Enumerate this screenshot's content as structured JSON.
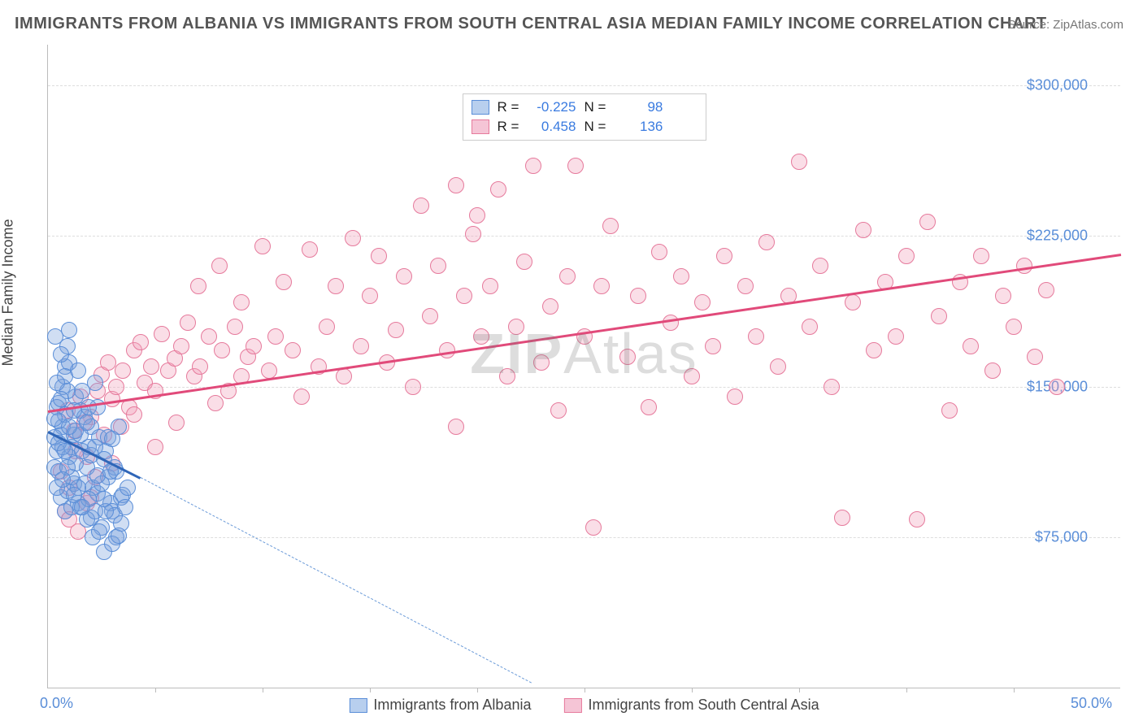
{
  "title": "IMMIGRANTS FROM ALBANIA VS IMMIGRANTS FROM SOUTH CENTRAL ASIA MEDIAN FAMILY INCOME CORRELATION CHART",
  "source_label": "Source: ZipAtlas.com",
  "y_axis_label": "Median Family Income",
  "watermark_prefix": "ZIP",
  "watermark_suffix": "Atlas",
  "chart": {
    "type": "scatter",
    "xlim": [
      0,
      50
    ],
    "ylim": [
      0,
      320000
    ],
    "y_ticks": [
      75000,
      150000,
      225000,
      300000
    ],
    "y_tick_labels": [
      "$75,000",
      "$150,000",
      "$225,000",
      "$300,000"
    ],
    "x_tick_positions": [
      5,
      10,
      15,
      20,
      25,
      30,
      35,
      40,
      45
    ],
    "x_start_label": "0.0%",
    "x_end_label": "50.0%",
    "background_color": "#ffffff",
    "grid_color": "#dddddd",
    "axis_color": "#bbbbbb",
    "tick_label_color": "#5a8ed8",
    "marker_radius": 10,
    "marker_stroke_width": 1.5,
    "series": [
      {
        "name": "Immigrants from Albania",
        "fill": "rgba(120,160,220,0.35)",
        "stroke": "#5a8ed8",
        "legend_fill": "#b8cfee",
        "legend_stroke": "#5a8ed8",
        "r": "-0.225",
        "n": "98",
        "trend": {
          "x1": 0,
          "y1": 128000,
          "x2": 4.3,
          "y2": 105000,
          "dash_x2": 22.5,
          "dash_y2": 3000,
          "color": "#2f66b8",
          "width": 3,
          "dash_color": "#6a9ad8"
        },
        "points": [
          [
            0.3,
            110000
          ],
          [
            0.4,
            118000
          ],
          [
            0.35,
            175000
          ],
          [
            0.5,
            142000
          ],
          [
            0.6,
            95000
          ],
          [
            0.7,
            130000
          ],
          [
            0.8,
            160000
          ],
          [
            0.5,
            108000
          ],
          [
            0.6,
            126000
          ],
          [
            0.9,
            98000
          ],
          [
            0.7,
            150000
          ],
          [
            0.4,
            140000
          ],
          [
            0.3,
            125000
          ],
          [
            0.8,
            136000
          ],
          [
            1.0,
            115000
          ],
          [
            1.1,
            120000
          ],
          [
            1.2,
            102000
          ],
          [
            1.3,
            145000
          ],
          [
            1.0,
            162000
          ],
          [
            0.9,
            170000
          ],
          [
            1.4,
            92000
          ],
          [
            1.5,
            138000
          ],
          [
            1.6,
            148000
          ],
          [
            1.2,
            126000
          ],
          [
            1.1,
            105000
          ],
          [
            0.8,
            88000
          ],
          [
            0.6,
            166000
          ],
          [
            1.7,
            135000
          ],
          [
            1.8,
            110000
          ],
          [
            1.9,
            120000
          ],
          [
            2.0,
            130000
          ],
          [
            2.1,
            100000
          ],
          [
            2.2,
            152000
          ],
          [
            1.5,
            90000
          ],
          [
            1.3,
            112000
          ],
          [
            2.3,
            97000
          ],
          [
            2.4,
            125000
          ],
          [
            2.5,
            80000
          ],
          [
            2.6,
            68000
          ],
          [
            2.3,
            140000
          ],
          [
            2.7,
            118000
          ],
          [
            2.8,
            105000
          ],
          [
            2.9,
            92000
          ],
          [
            3.0,
            88000
          ],
          [
            3.1,
            110000
          ],
          [
            3.2,
            75000
          ],
          [
            2.0,
            85000
          ],
          [
            2.1,
            75000
          ],
          [
            3.3,
            130000
          ],
          [
            3.4,
            95000
          ],
          [
            1.0,
            178000
          ],
          [
            0.7,
            120000
          ],
          [
            0.5,
            133000
          ],
          [
            0.9,
            148000
          ],
          [
            1.1,
            90000
          ],
          [
            1.4,
            158000
          ],
          [
            1.6,
            118000
          ],
          [
            1.8,
            84000
          ],
          [
            2.2,
            88000
          ],
          [
            2.5,
            102000
          ],
          [
            2.8,
            125000
          ],
          [
            3.0,
            72000
          ],
          [
            3.2,
            108000
          ],
          [
            3.5,
            96000
          ],
          [
            3.7,
            100000
          ],
          [
            0.4,
            100000
          ],
          [
            0.6,
            144000
          ],
          [
            0.8,
            155000
          ],
          [
            1.2,
            138000
          ],
          [
            1.5,
            126000
          ],
          [
            1.7,
            102000
          ],
          [
            1.9,
            94000
          ],
          [
            2.4,
            78000
          ],
          [
            2.6,
            114000
          ],
          [
            3.1,
            86000
          ],
          [
            0.3,
            134000
          ],
          [
            0.5,
            122000
          ],
          [
            0.9,
            110000
          ],
          [
            1.3,
            128000
          ],
          [
            1.6,
            90000
          ],
          [
            2.0,
            116000
          ],
          [
            2.3,
            106000
          ],
          [
            2.7,
            88000
          ],
          [
            3.0,
            124000
          ],
          [
            3.4,
            82000
          ],
          [
            0.7,
            104000
          ],
          [
            1.0,
            130000
          ],
          [
            1.4,
            100000
          ],
          [
            1.8,
            132000
          ],
          [
            2.2,
            120000
          ],
          [
            2.6,
            94000
          ],
          [
            2.9,
            108000
          ],
          [
            3.3,
            76000
          ],
          [
            3.6,
            90000
          ],
          [
            0.4,
            152000
          ],
          [
            0.8,
            118000
          ],
          [
            1.2,
            96000
          ],
          [
            1.9,
            140000
          ]
        ]
      },
      {
        "name": "Immigrants from South Central Asia",
        "fill": "rgba(240,160,185,0.35)",
        "stroke": "#e67a9c",
        "legend_fill": "#f5c5d6",
        "legend_stroke": "#e67a9c",
        "r": "0.458",
        "n": "136",
        "trend": {
          "x1": 0,
          "y1": 138000,
          "x2": 50,
          "y2": 216000,
          "color": "#e14a7a",
          "width": 3
        },
        "points": [
          [
            0.8,
            88000
          ],
          [
            1.0,
            100000
          ],
          [
            1.2,
            128000
          ],
          [
            1.5,
            145000
          ],
          [
            1.8,
            115000
          ],
          [
            2.0,
            135000
          ],
          [
            2.3,
            148000
          ],
          [
            2.5,
            156000
          ],
          [
            2.8,
            162000
          ],
          [
            3.0,
            144000
          ],
          [
            3.2,
            150000
          ],
          [
            3.5,
            158000
          ],
          [
            3.8,
            140000
          ],
          [
            4.0,
            168000
          ],
          [
            4.3,
            172000
          ],
          [
            4.5,
            152000
          ],
          [
            4.8,
            160000
          ],
          [
            5.0,
            148000
          ],
          [
            5.3,
            176000
          ],
          [
            5.6,
            158000
          ],
          [
            5.9,
            164000
          ],
          [
            6.2,
            170000
          ],
          [
            6.5,
            182000
          ],
          [
            6.8,
            155000
          ],
          [
            7.1,
            160000
          ],
          [
            7.5,
            175000
          ],
          [
            7.8,
            142000
          ],
          [
            8.1,
            168000
          ],
          [
            8.4,
            148000
          ],
          [
            8.7,
            180000
          ],
          [
            9.0,
            192000
          ],
          [
            9.3,
            165000
          ],
          [
            9.6,
            170000
          ],
          [
            10.0,
            220000
          ],
          [
            10.3,
            158000
          ],
          [
            10.6,
            175000
          ],
          [
            11.0,
            202000
          ],
          [
            11.4,
            168000
          ],
          [
            11.8,
            145000
          ],
          [
            12.2,
            218000
          ],
          [
            12.6,
            160000
          ],
          [
            13.0,
            180000
          ],
          [
            13.4,
            200000
          ],
          [
            13.8,
            155000
          ],
          [
            14.2,
            224000
          ],
          [
            14.6,
            170000
          ],
          [
            15.0,
            195000
          ],
          [
            15.4,
            215000
          ],
          [
            15.8,
            162000
          ],
          [
            16.2,
            178000
          ],
          [
            16.6,
            205000
          ],
          [
            17.0,
            150000
          ],
          [
            17.4,
            240000
          ],
          [
            17.8,
            185000
          ],
          [
            18.2,
            210000
          ],
          [
            18.6,
            168000
          ],
          [
            19.0,
            130000
          ],
          [
            19.4,
            195000
          ],
          [
            19.8,
            226000
          ],
          [
            20.2,
            175000
          ],
          [
            20.6,
            200000
          ],
          [
            21.0,
            248000
          ],
          [
            21.4,
            155000
          ],
          [
            21.8,
            180000
          ],
          [
            22.2,
            212000
          ],
          [
            22.6,
            260000
          ],
          [
            23.0,
            162000
          ],
          [
            23.4,
            190000
          ],
          [
            23.8,
            138000
          ],
          [
            24.2,
            205000
          ],
          [
            24.6,
            260000
          ],
          [
            25.0,
            175000
          ],
          [
            25.4,
            80000
          ],
          [
            25.8,
            200000
          ],
          [
            26.2,
            230000
          ],
          [
            27.0,
            165000
          ],
          [
            27.5,
            195000
          ],
          [
            28.0,
            140000
          ],
          [
            28.5,
            217000
          ],
          [
            29.0,
            182000
          ],
          [
            29.5,
            205000
          ],
          [
            30.0,
            155000
          ],
          [
            30.5,
            192000
          ],
          [
            31.0,
            170000
          ],
          [
            31.5,
            215000
          ],
          [
            32.0,
            145000
          ],
          [
            32.5,
            200000
          ],
          [
            33.0,
            175000
          ],
          [
            33.5,
            222000
          ],
          [
            34.0,
            160000
          ],
          [
            34.5,
            195000
          ],
          [
            35.0,
            262000
          ],
          [
            35.5,
            180000
          ],
          [
            36.0,
            210000
          ],
          [
            36.5,
            150000
          ],
          [
            37.0,
            85000
          ],
          [
            37.5,
            192000
          ],
          [
            38.0,
            228000
          ],
          [
            38.5,
            168000
          ],
          [
            39.0,
            202000
          ],
          [
            39.5,
            175000
          ],
          [
            40.0,
            215000
          ],
          [
            40.5,
            84000
          ],
          [
            41.0,
            232000
          ],
          [
            41.5,
            185000
          ],
          [
            42.0,
            138000
          ],
          [
            42.5,
            202000
          ],
          [
            43.0,
            170000
          ],
          [
            43.5,
            215000
          ],
          [
            44.0,
            158000
          ],
          [
            44.5,
            195000
          ],
          [
            45.0,
            180000
          ],
          [
            45.5,
            210000
          ],
          [
            46.0,
            165000
          ],
          [
            46.5,
            198000
          ],
          [
            47.0,
            150000
          ],
          [
            1.0,
            84000
          ],
          [
            1.4,
            78000
          ],
          [
            1.8,
            92000
          ],
          [
            2.2,
            105000
          ],
          [
            2.6,
            126000
          ],
          [
            3.0,
            112000
          ],
          [
            3.4,
            130000
          ],
          [
            0.6,
            108000
          ],
          [
            0.9,
            138000
          ],
          [
            1.3,
            118000
          ],
          [
            1.7,
            132000
          ],
          [
            2.0,
            95000
          ],
          [
            4.0,
            136000
          ],
          [
            5.0,
            120000
          ],
          [
            6.0,
            132000
          ],
          [
            7.0,
            200000
          ],
          [
            8.0,
            210000
          ],
          [
            9.0,
            155000
          ],
          [
            19.0,
            250000
          ],
          [
            20.0,
            235000
          ]
        ]
      }
    ]
  },
  "legend_labels": {
    "r": "R =",
    "n": "N ="
  }
}
